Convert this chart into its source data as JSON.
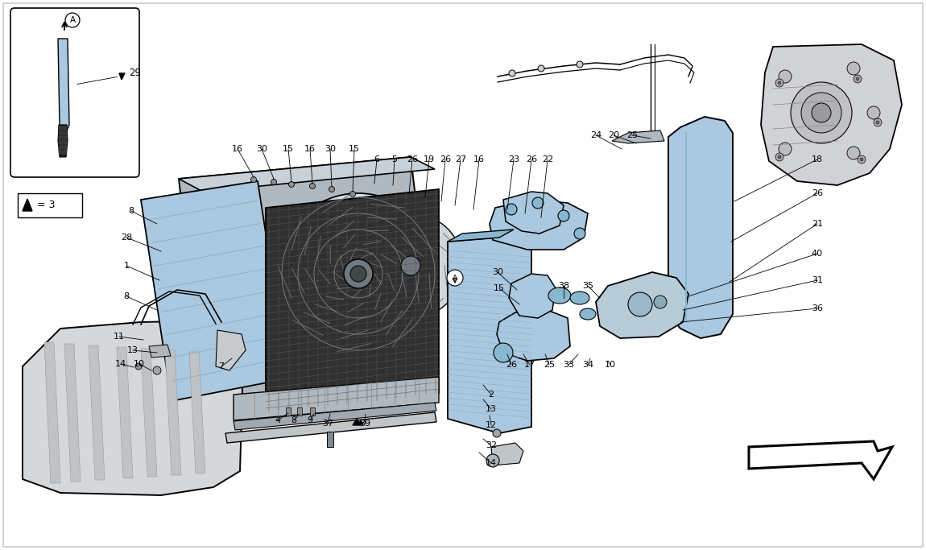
{
  "bg_color": "#ffffff",
  "light_blue": "#aac8e0",
  "blue2": "#88b8d0",
  "dark_blue": "#6898b8",
  "dark_line": "#111111",
  "gray_dark": "#444444",
  "gray_mid": "#888888",
  "gray_light": "#cccccc",
  "gray_bg": "#d8d8d8",
  "fig_width": 11.5,
  "fig_height": 6.83,
  "dpi": 100
}
